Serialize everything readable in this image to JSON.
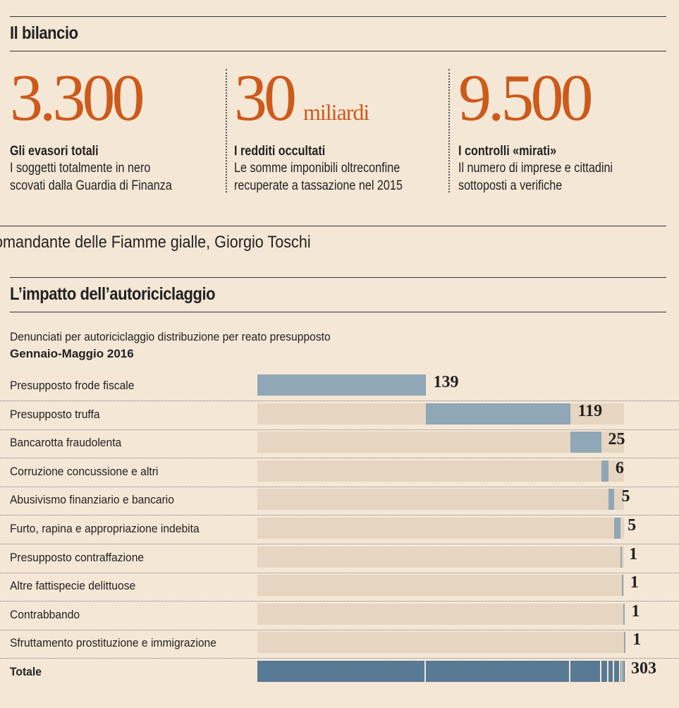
{
  "section1": {
    "title": "Il bilancio",
    "stats": [
      {
        "value": "3.300",
        "unit": "",
        "title": "Gli evasori totali",
        "desc": [
          "I soggetti totalmente in nero",
          "scovati dalla Guardia di Finanza"
        ]
      },
      {
        "value": "30",
        "unit": "miliardi",
        "title": "I redditi occultati",
        "desc": [
          "Le somme imponibili oltreconfine",
          "recuperate a tassazione nel 2015"
        ]
      },
      {
        "value": "9.500",
        "unit": "",
        "title": "I controlli «mirati»",
        "desc": [
          "Il numero di imprese e cittadini",
          "sottoposti a verifiche"
        ]
      }
    ]
  },
  "caption": "omandante delle Fiamme gialle, Giorgio Toschi",
  "chart_data": {
    "type": "bar",
    "title": "L’impatto dell’autoriciclaggio",
    "subtitle": "Denunciati per autoriciclaggio distribuzione per reato presupposto",
    "period": "Gennaio-Maggio 2016",
    "categories": [
      "Presupposto frode fiscale",
      "Presupposto truffa",
      "Bancarotta fraudolenta",
      "Corruzione concussione e altri",
      "Abusivismo finanziario e bancario",
      "Furto, rapina e appropriazione indebita",
      "Presupposto contraffazione",
      "Altre fattispecie delittuose",
      "Contrabbando",
      "Sfruttamento prostituzione e immigrazione"
    ],
    "values": [
      139,
      119,
      25,
      6,
      5,
      5,
      1,
      1,
      1,
      1
    ],
    "total_label": "Totale",
    "total": 303,
    "colors": {
      "bar": "#8fa7b6",
      "total": "#587a94",
      "track": "#e6d5c0",
      "accent": "#cc5a1a"
    }
  }
}
